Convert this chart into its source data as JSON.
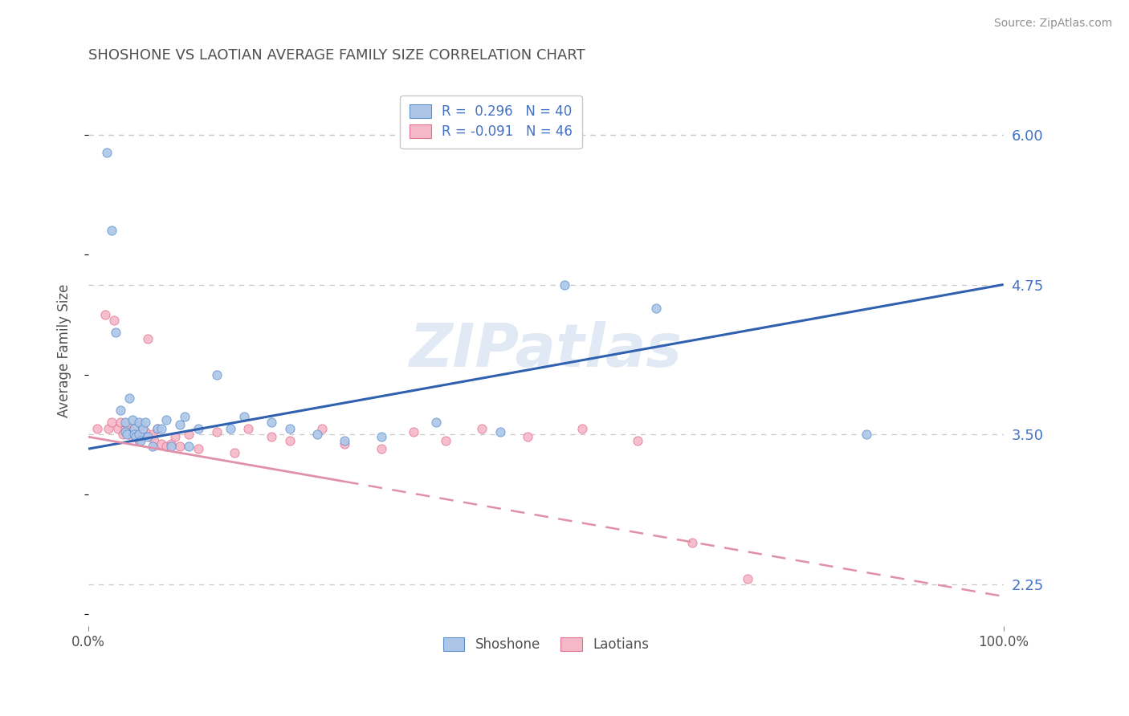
{
  "title": "SHOSHONE VS LAOTIAN AVERAGE FAMILY SIZE CORRELATION CHART",
  "source_text": "Source: ZipAtlas.com",
  "ylabel": "Average Family Size",
  "watermark": "ZIPatlas",
  "xlim": [
    0.0,
    1.0
  ],
  "ylim": [
    1.9,
    6.5
  ],
  "yticks": [
    2.25,
    3.5,
    4.75,
    6.0
  ],
  "xtick_labels": [
    "0.0%",
    "100.0%"
  ],
  "right_ytick_labels": [
    "2.25",
    "3.50",
    "4.75",
    "6.00"
  ],
  "shoshone_R": "0.296",
  "shoshone_N": "40",
  "laotian_R": "-0.091",
  "laotian_N": "46",
  "shoshone_scatter_color": "#adc6e8",
  "shoshone_edge_color": "#5b8fc9",
  "laotian_scatter_color": "#f5b8c8",
  "laotian_edge_color": "#e07090",
  "shoshone_line_color": "#3060b0",
  "laotian_line_color": "#e090a8",
  "legend_text_color": "#4472c4",
  "title_color": "#505050",
  "source_color": "#909090",
  "ylabel_color": "#505050",
  "background_color": "#ffffff",
  "grid_color": "#c8c8c8",
  "shoshone_x": [
    0.02,
    0.025,
    0.03,
    0.035,
    0.04,
    0.04,
    0.042,
    0.045,
    0.048,
    0.05,
    0.05,
    0.052,
    0.055,
    0.055,
    0.057,
    0.06,
    0.062,
    0.065,
    0.07,
    0.075,
    0.08,
    0.085,
    0.09,
    0.1,
    0.105,
    0.11,
    0.12,
    0.14,
    0.155,
    0.17,
    0.2,
    0.22,
    0.25,
    0.28,
    0.32,
    0.38,
    0.45,
    0.52,
    0.62,
    0.85
  ],
  "shoshone_y": [
    5.85,
    5.2,
    4.35,
    3.7,
    3.6,
    3.52,
    3.5,
    3.8,
    3.62,
    3.55,
    3.5,
    3.48,
    3.6,
    3.5,
    3.45,
    3.55,
    3.6,
    3.48,
    3.4,
    3.55,
    3.55,
    3.62,
    3.4,
    3.58,
    3.65,
    3.4,
    3.55,
    4.0,
    3.55,
    3.65,
    3.6,
    3.55,
    3.5,
    3.45,
    3.48,
    3.6,
    3.52,
    4.75,
    4.55,
    3.5
  ],
  "laotian_x": [
    0.01,
    0.018,
    0.022,
    0.025,
    0.028,
    0.032,
    0.035,
    0.038,
    0.04,
    0.042,
    0.045,
    0.048,
    0.05,
    0.052,
    0.055,
    0.058,
    0.06,
    0.062,
    0.065,
    0.068,
    0.07,
    0.072,
    0.075,
    0.08,
    0.085,
    0.09,
    0.095,
    0.1,
    0.11,
    0.12,
    0.14,
    0.16,
    0.175,
    0.2,
    0.22,
    0.255,
    0.28,
    0.32,
    0.355,
    0.39,
    0.43,
    0.48,
    0.54,
    0.6,
    0.66,
    0.72
  ],
  "laotian_y": [
    3.55,
    4.5,
    3.55,
    3.6,
    4.45,
    3.55,
    3.6,
    3.5,
    3.55,
    3.58,
    3.52,
    3.48,
    3.55,
    3.5,
    3.45,
    3.58,
    3.55,
    3.52,
    4.3,
    3.48,
    3.5,
    3.45,
    3.55,
    3.42,
    3.4,
    3.42,
    3.48,
    3.4,
    3.5,
    3.38,
    3.52,
    3.35,
    3.55,
    3.48,
    3.45,
    3.55,
    3.42,
    3.38,
    3.52,
    3.45,
    3.55,
    3.48,
    3.55,
    3.45,
    2.6,
    2.3
  ]
}
